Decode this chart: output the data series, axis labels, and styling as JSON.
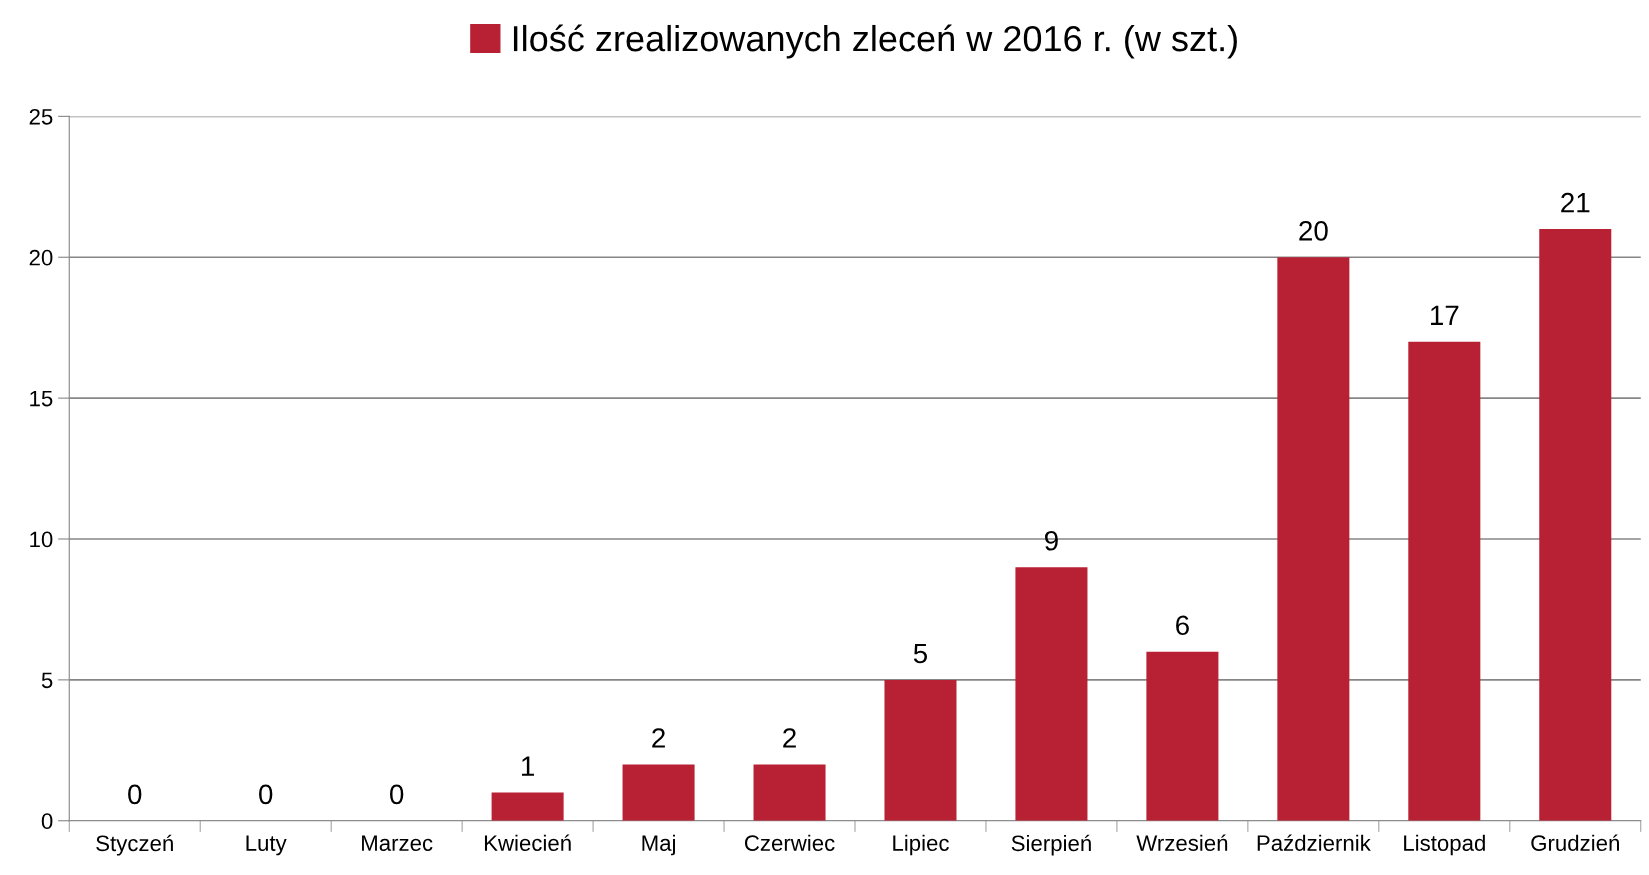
{
  "chart_data": {
    "type": "bar",
    "categories": [
      "Styczeń",
      "Luty",
      "Marzec",
      "Kwiecień",
      "Maj",
      "Czerwiec",
      "Lipiec",
      "Sierpień",
      "Wrzesień",
      "Październik",
      "Listopad",
      "Grudzień"
    ],
    "series": [
      {
        "name": "Ilość zrealizowanych zleceń w 2016 r. (w szt.)",
        "color": "#b82033",
        "values": [
          0,
          0,
          0,
          1,
          2,
          2,
          5,
          9,
          6,
          20,
          17,
          21
        ]
      }
    ],
    "ylim": [
      0,
      25
    ],
    "yticks": [
      0,
      5,
      10,
      15,
      20,
      25
    ],
    "grid": "y",
    "legend": "top",
    "data_labels": true
  }
}
